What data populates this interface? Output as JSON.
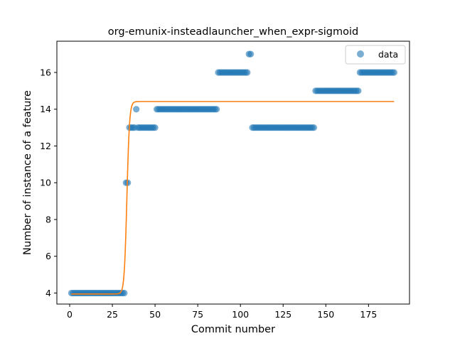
{
  "chart_data": {
    "type": "scatter",
    "title": "org-emunix-insteadlauncher_when_expr-sigmoid",
    "xlabel": "Commit number",
    "ylabel": "Number of instance of a feature",
    "xlim": [
      -7.5,
      199
    ],
    "ylim": [
      3.4,
      17.7
    ],
    "xticks": [
      0,
      25,
      50,
      75,
      100,
      125,
      150,
      175
    ],
    "yticks": [
      4,
      6,
      8,
      10,
      12,
      14,
      16
    ],
    "grid": false,
    "legend_position": "top-right",
    "series": [
      {
        "name": "data",
        "kind": "points",
        "color": "#1f77b4",
        "runs": [
          {
            "from": 1,
            "to": 32,
            "y": 4
          },
          {
            "from": 33,
            "to": 34,
            "y": 10
          },
          {
            "from": 35,
            "to": 38,
            "y": 13
          },
          {
            "from": 39,
            "to": 39,
            "y": 14
          },
          {
            "from": 40,
            "to": 50,
            "y": 13
          },
          {
            "from": 51,
            "to": 86,
            "y": 14
          },
          {
            "from": 87,
            "to": 104,
            "y": 16
          },
          {
            "from": 105,
            "to": 106,
            "y": 17
          },
          {
            "from": 107,
            "to": 143,
            "y": 13
          },
          {
            "from": 144,
            "to": 169,
            "y": 15
          },
          {
            "from": 170,
            "to": 190,
            "y": 16
          }
        ]
      },
      {
        "kind": "sigmoid-fit",
        "color": "#ff7f0e",
        "x_range": [
          1,
          190
        ],
        "low": 3.95,
        "high": 14.42,
        "midpoint": 33.5,
        "steepness": 1.3
      }
    ]
  }
}
